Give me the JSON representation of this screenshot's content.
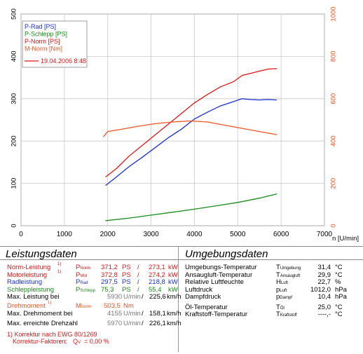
{
  "chart_data": {
    "type": "line",
    "timestamp": "19.04.2006 8:48",
    "xlabel": "n [U/min]",
    "xlim": [
      0,
      7000
    ],
    "x_ticks": [
      "0",
      "1000",
      "2000",
      "3000",
      "4000",
      "5000",
      "6000",
      "7000"
    ],
    "ylim_left": [
      0,
      500
    ],
    "y_ticks_left": [
      "0",
      "100",
      "200",
      "300",
      "400",
      "500"
    ],
    "ylim_right": [
      0,
      1000
    ],
    "y_ticks_right": [
      "0",
      "200",
      "400",
      "600",
      "800",
      "1000"
    ],
    "grid": true,
    "legend_position": "top-left",
    "series": [
      {
        "name": "P-Rad [PS]",
        "axis": "left",
        "color": "#1a2fd6",
        "x": [
          1950,
          2200,
          2500,
          2800,
          3100,
          3400,
          3700,
          4000,
          4300,
          4600,
          4900,
          5100,
          5300,
          5500,
          5700,
          5900
        ],
        "y": [
          95,
          115,
          140,
          162,
          185,
          208,
          228,
          252,
          268,
          283,
          293,
          300,
          298,
          297,
          298,
          297
        ]
      },
      {
        "name": "P-Schlepp [PS]",
        "axis": "left",
        "color": "#1a8a1a",
        "x": [
          1950,
          2500,
          3000,
          3500,
          4000,
          4500,
          5000,
          5500,
          5900
        ],
        "y": [
          12,
          18,
          25,
          32,
          39,
          47,
          55,
          65,
          75
        ]
      },
      {
        "name": "P-Norm [PS]",
        "axis": "left",
        "color": "#e01515",
        "x": [
          1950,
          2200,
          2500,
          2800,
          3100,
          3400,
          3700,
          4000,
          4300,
          4600,
          4900,
          5100,
          5300,
          5500,
          5700,
          5900
        ],
        "y": [
          115,
          135,
          165,
          190,
          215,
          240,
          265,
          290,
          310,
          328,
          340,
          355,
          360,
          365,
          370,
          371
        ]
      },
      {
        "name": "M-Norm [Nm]",
        "axis": "right",
        "color": "#ee5522",
        "x": [
          1900,
          2000,
          2300,
          2700,
          3100,
          3500,
          3900,
          4300,
          4700,
          5100,
          5500,
          5900
        ],
        "y": [
          420,
          445,
          455,
          470,
          482,
          490,
          495,
          490,
          475,
          460,
          445,
          430
        ]
      }
    ]
  },
  "leistung": {
    "title": "Leistungsdaten",
    "rows": [
      {
        "label": "Norm-Leistung",
        "mark": "1)",
        "sym": "P",
        "sub": "Norm",
        "v1": "371,2",
        "u1": "PS",
        "sep": "/",
        "v2": "273,1",
        "u2": "kW",
        "color": "#e01515"
      },
      {
        "label": "Motorleistung",
        "mark": "1)",
        "sym": "P",
        "sub": "Mot",
        "v1": "372,8",
        "u1": "PS",
        "sep": "/",
        "v2": "274,2",
        "u2": "kW",
        "color": "#e01515"
      },
      {
        "label": "Radleistung",
        "mark": "",
        "sym": "P",
        "sub": "Rad",
        "v1": "297,5",
        "u1": "PS",
        "sep": "/",
        "v2": "218,8",
        "u2": "kW",
        "color": "#1a2fd6"
      },
      {
        "label": "Schleppleistung",
        "mark": "",
        "sym": "P",
        "sub": "Schlepp",
        "v1": "75,3",
        "u1": "PS",
        "sep": "/",
        "v2": "55,4",
        "u2": "kW",
        "color": "#1a8a1a"
      }
    ],
    "max_leistung": {
      "label": "Max. Leistung bei",
      "rpm": "5930",
      "unit1": "U/min",
      "sep": "/",
      "speed": "225,6",
      "unit2": "km/h"
    },
    "drehmoment": {
      "label": "Drehmoment",
      "mark": "1)",
      "sym": "M",
      "sub": "Norm",
      "value": "503,5",
      "unit": "Nm",
      "color": "#ee5522"
    },
    "max_drehmoment": {
      "label": "Max. Drehmoment bei",
      "rpm": "4155",
      "unit1": "U/min",
      "sep": "/",
      "speed": "158,1",
      "unit2": "km/h"
    },
    "max_drehzahl": {
      "label": "Max. erreichte Drehzahl",
      "rpm": "5970",
      "unit1": "U/min",
      "sep": "/",
      "speed": "226,1",
      "unit2": "km/h"
    },
    "footnote1": "1) Korrektur nach EWG 80/1269",
    "footnote2_label": "Korrektur-Faktoren:",
    "footnote2_sym": "Q",
    "footnote2_sub": "V",
    "footnote2_value": "=   0,00 %"
  },
  "umgebung": {
    "title": "Umgebungsdaten",
    "rows": [
      {
        "label": "Umgebungs-Temperatur",
        "sym": "T",
        "sub": "Umgebung",
        "value": "31,4",
        "unit": "°C"
      },
      {
        "label": "Ansaugluft-Temperatur",
        "sym": "T",
        "sub": "Ansaugluft",
        "value": "29,9",
        "unit": "°C"
      },
      {
        "label": "Relative Luftfeuchte",
        "sym": "H",
        "sub": "Luft",
        "value": "22,7",
        "unit": "%"
      },
      {
        "label": "Luftdruck",
        "sym": "p",
        "sub": "Luft",
        "value": "1012,0",
        "unit": "hPa"
      },
      {
        "label": "Dampfdruck",
        "sym": "p",
        "sub": "Dampf",
        "value": "10,4",
        "unit": "hPa"
      },
      {
        "label": "Öl-Temperatur",
        "sym": "T",
        "sub": "Öl",
        "value": "25,0",
        "unit": "°C"
      },
      {
        "label": "Kraftstoff-Temperatur",
        "sym": "T",
        "sub": "Kraftstoff",
        "value": "----,-",
        "unit": "°C"
      }
    ]
  }
}
